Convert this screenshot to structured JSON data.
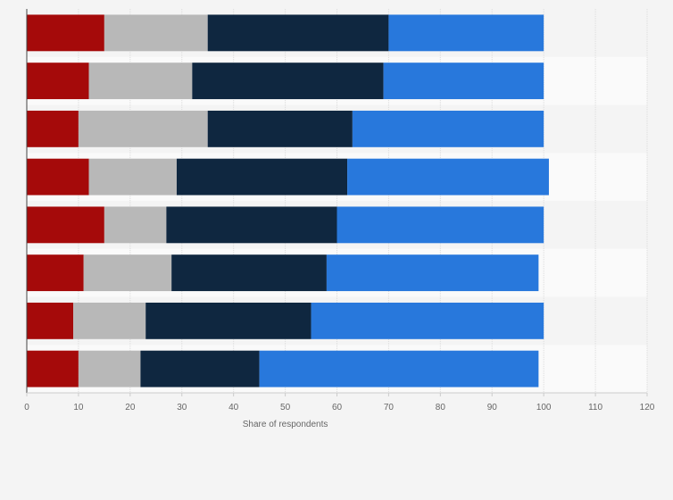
{
  "chart_data": {
    "type": "bar",
    "orientation": "horizontal",
    "stacked": true,
    "title": "",
    "xlabel": "Share of respondents",
    "ylabel": "",
    "xlim": [
      0,
      120
    ],
    "xticks": [
      0,
      10,
      20,
      30,
      40,
      50,
      60,
      70,
      80,
      90,
      100,
      110,
      120
    ],
    "grid": true,
    "legend": "none",
    "category_count": 8,
    "series": [
      {
        "color": "#a50a0a",
        "values": [
          15,
          12,
          10,
          12,
          15,
          11,
          9,
          10
        ]
      },
      {
        "color": "#b8b8b8",
        "values": [
          20,
          20,
          25,
          17,
          12,
          17,
          14,
          12
        ]
      },
      {
        "color": "#0f2740",
        "values": [
          35,
          37,
          28,
          33,
          33,
          30,
          32,
          23
        ]
      },
      {
        "color": "#2878dc",
        "values": [
          30,
          31,
          37,
          39,
          40,
          41,
          45,
          54
        ]
      }
    ]
  }
}
